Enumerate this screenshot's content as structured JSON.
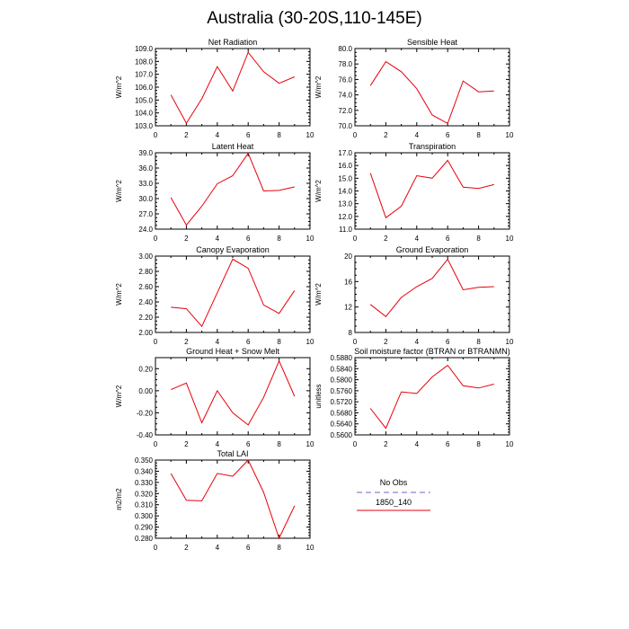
{
  "title": "Australia (30-20S,110-145E)",
  "legend": {
    "items": [
      {
        "label": "No Obs",
        "color": "#9b9bdc",
        "dash": true
      },
      {
        "label": "1850_140",
        "color": "#e8000b",
        "dash": false
      }
    ]
  },
  "chart_data": [
    {
      "type": "line",
      "title": "Net Radiation",
      "ylabel": "W/m^2",
      "xlim": [
        0,
        10
      ],
      "ylim": [
        103.0,
        109.0
      ],
      "xticks": [
        "0",
        "2",
        "4",
        "6",
        "8",
        "10"
      ],
      "yticks": [
        "103.0",
        "104.0",
        "105.0",
        "106.0",
        "107.0",
        "108.0",
        "109.0"
      ],
      "x": [
        1,
        2,
        3,
        4,
        5,
        6,
        7,
        8,
        9
      ],
      "series": [
        {
          "name": "1850_140",
          "color": "#e8000b",
          "values": [
            105.4,
            103.2,
            105.1,
            107.6,
            105.7,
            108.7,
            107.2,
            106.3,
            106.8
          ]
        }
      ]
    },
    {
      "type": "line",
      "title": "Sensible Heat",
      "ylabel": "W/m^2",
      "xlim": [
        0,
        10
      ],
      "ylim": [
        70.0,
        80.0
      ],
      "xticks": [
        "0",
        "2",
        "4",
        "6",
        "8",
        "10"
      ],
      "yticks": [
        "70.0",
        "72.0",
        "74.0",
        "76.0",
        "78.0",
        "80.0"
      ],
      "x": [
        1,
        2,
        3,
        4,
        5,
        6,
        7,
        8,
        9
      ],
      "series": [
        {
          "name": "1850_140",
          "color": "#e8000b",
          "values": [
            75.2,
            78.3,
            77.0,
            74.8,
            71.4,
            70.3,
            75.8,
            74.4,
            74.5
          ]
        }
      ]
    },
    {
      "type": "line",
      "title": "Latent Heat",
      "ylabel": "W/m^2",
      "xlim": [
        0,
        10
      ],
      "ylim": [
        24.0,
        39.0
      ],
      "xticks": [
        "0",
        "2",
        "4",
        "6",
        "8",
        "10"
      ],
      "yticks": [
        "24.0",
        "27.0",
        "30.0",
        "33.0",
        "36.0",
        "39.0"
      ],
      "x": [
        1,
        2,
        3,
        4,
        5,
        6,
        7,
        8,
        9
      ],
      "series": [
        {
          "name": "1850_140",
          "color": "#e8000b",
          "values": [
            30.2,
            24.8,
            28.5,
            32.9,
            34.5,
            38.9,
            31.5,
            31.6,
            32.3
          ]
        }
      ]
    },
    {
      "type": "line",
      "title": "Transpiration",
      "ylabel": "W/m^2",
      "xlim": [
        0,
        10
      ],
      "ylim": [
        11.0,
        17.0
      ],
      "xticks": [
        "0",
        "2",
        "4",
        "6",
        "8",
        "10"
      ],
      "yticks": [
        "11.0",
        "12.0",
        "13.0",
        "14.0",
        "15.0",
        "16.0",
        "17.0"
      ],
      "x": [
        1,
        2,
        3,
        4,
        5,
        6,
        7,
        8,
        9
      ],
      "series": [
        {
          "name": "1850_140",
          "color": "#e8000b",
          "values": [
            15.4,
            11.9,
            12.8,
            15.2,
            15.0,
            16.4,
            14.3,
            14.2,
            14.5
          ]
        }
      ]
    },
    {
      "type": "line",
      "title": "Canopy Evaporation",
      "ylabel": "W/m^2",
      "xlim": [
        0,
        10
      ],
      "ylim": [
        2.0,
        3.0
      ],
      "xticks": [
        "0",
        "2",
        "4",
        "6",
        "8",
        "10"
      ],
      "yticks": [
        "2.00",
        "2.20",
        "2.40",
        "2.60",
        "2.80",
        "3.00"
      ],
      "x": [
        1,
        2,
        3,
        4,
        5,
        6,
        7,
        8,
        9
      ],
      "series": [
        {
          "name": "1850_140",
          "color": "#e8000b",
          "values": [
            2.33,
            2.31,
            2.08,
            2.52,
            2.96,
            2.84,
            2.36,
            2.25,
            2.55
          ]
        }
      ]
    },
    {
      "type": "line",
      "title": "Ground Evaporation",
      "ylabel": "W/m^2",
      "xlim": [
        0,
        10
      ],
      "ylim": [
        8,
        20
      ],
      "xticks": [
        "0",
        "2",
        "4",
        "6",
        "8",
        "10"
      ],
      "yticks": [
        "8",
        "12",
        "16",
        "20"
      ],
      "x": [
        1,
        2,
        3,
        4,
        5,
        6,
        7,
        8,
        9
      ],
      "series": [
        {
          "name": "1850_140",
          "color": "#e8000b",
          "values": [
            12.4,
            10.5,
            13.5,
            15.2,
            16.5,
            19.5,
            14.7,
            15.1,
            15.2
          ]
        }
      ]
    },
    {
      "type": "line",
      "title": "Ground Heat + Snow Melt",
      "ylabel": "W/m^2",
      "xlim": [
        0,
        10
      ],
      "ylim": [
        -0.4,
        0.3
      ],
      "xticks": [
        "0",
        "2",
        "4",
        "6",
        "8",
        "10"
      ],
      "yticks": [
        "-0.40",
        "-0.20",
        "0.00",
        "0.20"
      ],
      "yticksv": [
        -0.4,
        -0.2,
        0.0,
        0.2
      ],
      "x": [
        1,
        2,
        3,
        4,
        5,
        6,
        7,
        8,
        9
      ],
      "series": [
        {
          "name": "1850_140",
          "color": "#e8000b",
          "values": [
            0.01,
            0.07,
            -0.29,
            0.0,
            -0.2,
            -0.31,
            -0.06,
            0.27,
            -0.05
          ]
        }
      ]
    },
    {
      "type": "line",
      "title": "Soil moisture factor (BTRAN or BTRANMN)",
      "ylabel": "unitless",
      "xlim": [
        0,
        10
      ],
      "ylim": [
        0.56,
        0.588
      ],
      "xticks": [
        "0",
        "2",
        "4",
        "6",
        "8",
        "10"
      ],
      "yticks": [
        "0.5600",
        "0.5640",
        "0.5680",
        "0.5720",
        "0.5760",
        "0.5800",
        "0.5840",
        "0.5880"
      ],
      "x": [
        1,
        2,
        3,
        4,
        5,
        6,
        7,
        8,
        9
      ],
      "series": [
        {
          "name": "1850_140",
          "color": "#e8000b",
          "values": [
            0.5696,
            0.5624,
            0.5756,
            0.575,
            0.581,
            0.5852,
            0.5778,
            0.577,
            0.5784
          ]
        }
      ]
    },
    {
      "type": "line",
      "title": "Total LAI",
      "ylabel": "m2/m2",
      "xlim": [
        0,
        10
      ],
      "ylim": [
        0.28,
        0.35
      ],
      "xticks": [
        "0",
        "2",
        "4",
        "6",
        "8",
        "10"
      ],
      "yticks": [
        "0.280",
        "0.290",
        "0.300",
        "0.310",
        "0.320",
        "0.330",
        "0.340",
        "0.350"
      ],
      "x": [
        1,
        2,
        3,
        4,
        5,
        6,
        7,
        8,
        9
      ],
      "series": [
        {
          "name": "1850_140",
          "color": "#e8000b",
          "values": [
            0.338,
            0.314,
            0.3135,
            0.338,
            0.3355,
            0.35,
            0.321,
            0.28,
            0.309
          ]
        }
      ]
    }
  ]
}
